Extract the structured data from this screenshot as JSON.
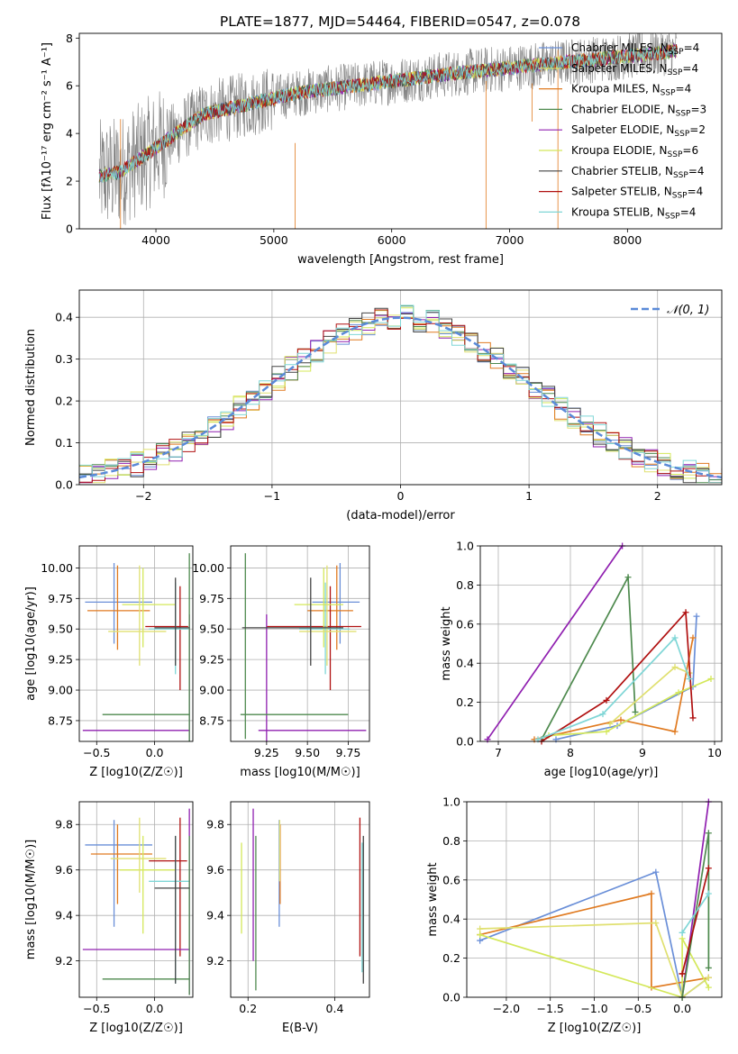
{
  "figure": {
    "title": "PLATE=1877, MJD=54464, FIBERID=0547, z=0.078"
  },
  "series_styles": [
    {
      "name": "Chabrier MILES",
      "nssp": "4",
      "color": "#6a8fd8"
    },
    {
      "name": "Salpeter MILES",
      "nssp": "4",
      "color": "#e0e070"
    },
    {
      "name": "Kroupa MILES",
      "nssp": "4",
      "color": "#e07a20"
    },
    {
      "name": "Chabrier ELODIE",
      "nssp": "3",
      "color": "#4e8a4e"
    },
    {
      "name": "Salpeter ELODIE",
      "nssp": "2",
      "color": "#9020b0"
    },
    {
      "name": "Kroupa ELODIE",
      "nssp": "6",
      "color": "#d4e85a"
    },
    {
      "name": "Chabrier STELIB",
      "nssp": "4",
      "color": "#444444"
    },
    {
      "name": "Salpeter STELIB",
      "nssp": "4",
      "color": "#b01010"
    },
    {
      "name": "Kroupa STELIB",
      "nssp": "4",
      "color": "#7fd6d6"
    }
  ],
  "chart_data": [
    {
      "id": "spectrum",
      "type": "line",
      "xlabel": "wavelength [Angstrom, rest frame]",
      "ylabel": "Flux [fλ10⁻¹⁷ erg cm⁻² s⁻¹ A⁻¹]",
      "xlim": [
        3350,
        8800
      ],
      "ylim": [
        0,
        8.2
      ],
      "xticks": [
        4000,
        5000,
        6000,
        7000,
        8000
      ],
      "yticks": [
        0,
        2,
        4,
        6,
        8
      ],
      "legend_placement": "right",
      "spectrum_color": "#808080"
    },
    {
      "id": "residuals",
      "type": "line",
      "xlabel": "(data-model)/error",
      "ylabel": "Normed distribution",
      "xlim": [
        -2.5,
        2.5
      ],
      "ylim": [
        0,
        0.465
      ],
      "xticks": [
        -2,
        -1,
        0,
        1,
        2
      ],
      "yticks": [
        0.0,
        0.1,
        0.2,
        0.3,
        0.4
      ],
      "grid": true,
      "legend": "𝒩(0, 1)",
      "legend_placement": "top-right",
      "normal_color": "#5a8ad8"
    },
    {
      "id": "age-vs-z",
      "type": "scatter",
      "xlabel": "Z [log10(Z/Z☉)]",
      "ylabel": "age [log10(age/yr)]",
      "xlim": [
        -0.65,
        0.33
      ],
      "ylim": [
        8.58,
        10.18
      ],
      "xticks": [
        -0.5,
        0.0
      ],
      "yticks": [
        8.75,
        9.0,
        9.25,
        9.5,
        9.75,
        10.0
      ],
      "grid": true,
      "points": [
        {
          "s": 0,
          "x": -0.35,
          "xlo": -0.6,
          "xhi": -0.02,
          "y": 9.72,
          "ylo": 9.38,
          "yhi": 10.04
        },
        {
          "s": 2,
          "x": -0.32,
          "xlo": -0.58,
          "xhi": -0.04,
          "y": 9.65,
          "ylo": 9.33,
          "yhi": 10.02
        },
        {
          "s": 7,
          "x": 0.22,
          "xlo": -0.08,
          "xhi": 0.29,
          "y": 9.52,
          "ylo": 9.0,
          "yhi": 9.85
        },
        {
          "s": 8,
          "x": 0.18,
          "xlo": -0.05,
          "xhi": 0.29,
          "y": 9.5,
          "ylo": 9.13,
          "yhi": 9.88
        },
        {
          "s": 4,
          "x": 0.3,
          "xlo": -0.62,
          "xhi": 0.3,
          "y": 8.67,
          "ylo": 8.58,
          "yhi": 9.62
        },
        {
          "s": 3,
          "x": 0.3,
          "xlo": -0.45,
          "xhi": 0.3,
          "y": 8.8,
          "ylo": 8.58,
          "yhi": 10.12
        },
        {
          "s": 5,
          "x": -0.1,
          "xlo": -0.28,
          "xhi": 0.18,
          "y": 9.7,
          "ylo": 9.35,
          "yhi": 10.0
        },
        {
          "s": 1,
          "x": -0.13,
          "xlo": -0.4,
          "xhi": 0.1,
          "y": 9.48,
          "ylo": 9.2,
          "yhi": 10.02
        },
        {
          "s": 6,
          "x": 0.18,
          "xlo": 0.0,
          "xhi": 0.3,
          "y": 9.51,
          "ylo": 9.2,
          "yhi": 9.92
        }
      ]
    },
    {
      "id": "age-vs-mass",
      "type": "scatter",
      "xlabel": "mass [log10(M/M☉)]",
      "ylabel": "",
      "xlim": [
        9.03,
        9.88
      ],
      "ylim": [
        8.58,
        10.18
      ],
      "xticks": [
        9.25,
        9.5,
        9.75
      ],
      "yticks": [
        8.75,
        9.0,
        9.25,
        9.5,
        9.75,
        10.0
      ],
      "grid": true,
      "points": [
        {
          "s": 0,
          "x": 9.7,
          "xlo": 9.53,
          "xhi": 9.82,
          "y": 9.72,
          "ylo": 9.38,
          "yhi": 10.04
        },
        {
          "s": 2,
          "x": 9.68,
          "xlo": 9.5,
          "xhi": 9.78,
          "y": 9.65,
          "ylo": 9.33,
          "yhi": 10.02
        },
        {
          "s": 7,
          "x": 9.64,
          "xlo": 9.25,
          "xhi": 9.83,
          "y": 9.52,
          "ylo": 9.0,
          "yhi": 9.85
        },
        {
          "s": 8,
          "x": 9.61,
          "xlo": 9.45,
          "xhi": 9.76,
          "y": 9.5,
          "ylo": 9.13,
          "yhi": 9.88
        },
        {
          "s": 4,
          "x": 9.25,
          "xlo": 9.2,
          "xhi": 9.86,
          "y": 8.67,
          "ylo": 8.58,
          "yhi": 9.62
        },
        {
          "s": 3,
          "x": 9.12,
          "xlo": 9.09,
          "xhi": 9.75,
          "y": 8.8,
          "ylo": 8.6,
          "yhi": 10.12
        },
        {
          "s": 5,
          "x": 9.6,
          "xlo": 9.42,
          "xhi": 9.72,
          "y": 9.7,
          "ylo": 9.35,
          "yhi": 10.0
        },
        {
          "s": 1,
          "x": 9.62,
          "xlo": 9.45,
          "xhi": 9.8,
          "y": 9.48,
          "ylo": 9.2,
          "yhi": 10.02
        },
        {
          "s": 6,
          "x": 9.52,
          "xlo": 9.1,
          "xhi": 9.72,
          "y": 9.51,
          "ylo": 9.2,
          "yhi": 9.92
        }
      ]
    },
    {
      "id": "weight-vs-age",
      "type": "line",
      "xlabel": "age [log10(age/yr)]",
      "ylabel": "mass weight",
      "xlim": [
        6.75,
        10.1
      ],
      "ylim": [
        0,
        1.0
      ],
      "xticks": [
        7,
        8,
        9,
        10
      ],
      "yticks": [
        0.0,
        0.2,
        0.4,
        0.6,
        0.8,
        1.0
      ],
      "grid": true,
      "series": [
        {
          "s": 0,
          "points": [
            [
              7.8,
              0.01
            ],
            [
              8.65,
              0.08
            ],
            [
              9.7,
              0.28
            ],
            [
              9.75,
              0.64
            ]
          ]
        },
        {
          "s": 2,
          "points": [
            [
              7.5,
              0.01
            ],
            [
              8.7,
              0.11
            ],
            [
              9.45,
              0.05
            ],
            [
              9.7,
              0.53
            ]
          ]
        },
        {
          "s": 4,
          "points": [
            [
              6.85,
              0.01
            ],
            [
              8.72,
              1.0
            ]
          ]
        },
        {
          "s": 3,
          "points": [
            [
              7.6,
              0.01
            ],
            [
              8.8,
              0.84
            ],
            [
              8.9,
              0.15
            ]
          ]
        },
        {
          "s": 5,
          "points": [
            [
              7.7,
              0.03
            ],
            [
              8.5,
              0.05
            ],
            [
              9.5,
              0.25
            ],
            [
              9.95,
              0.32
            ]
          ]
        },
        {
          "s": 1,
          "points": [
            [
              8.55,
              0.09
            ],
            [
              9.45,
              0.38
            ],
            [
              9.65,
              0.35
            ]
          ]
        },
        {
          "s": 7,
          "points": [
            [
              7.6,
              0.0
            ],
            [
              8.5,
              0.21
            ],
            [
              9.6,
              0.66
            ],
            [
              9.7,
              0.12
            ]
          ]
        },
        {
          "s": 8,
          "points": [
            [
              7.55,
              0.01
            ],
            [
              8.45,
              0.14
            ],
            [
              9.45,
              0.53
            ],
            [
              9.65,
              0.32
            ]
          ]
        }
      ]
    },
    {
      "id": "mass-vs-z",
      "type": "scatter",
      "xlabel": "Z [log10(Z/Z☉)]",
      "ylabel": "mass [log10(M/M☉)]",
      "xlim": [
        -0.65,
        0.33
      ],
      "ylim": [
        9.04,
        9.9
      ],
      "xticks": [
        -0.5,
        0.0
      ],
      "yticks": [
        9.2,
        9.4,
        9.6,
        9.8
      ],
      "grid": true,
      "points": [
        {
          "s": 0,
          "x": -0.35,
          "xlo": -0.6,
          "xhi": -0.02,
          "y": 9.71,
          "ylo": 9.35,
          "yhi": 9.82
        },
        {
          "s": 2,
          "x": -0.32,
          "xlo": -0.55,
          "xhi": -0.02,
          "y": 9.67,
          "ylo": 9.45,
          "yhi": 9.8
        },
        {
          "s": 7,
          "x": 0.22,
          "xlo": -0.05,
          "xhi": 0.28,
          "y": 9.64,
          "ylo": 9.22,
          "yhi": 9.83
        },
        {
          "s": 8,
          "x": 0.18,
          "xlo": -0.05,
          "xhi": 0.3,
          "y": 9.55,
          "ylo": 9.1,
          "yhi": 9.75
        },
        {
          "s": 4,
          "x": 0.3,
          "xlo": -0.62,
          "xhi": 0.3,
          "y": 9.25,
          "ylo": 9.05,
          "yhi": 9.87
        },
        {
          "s": 3,
          "x": 0.3,
          "xlo": -0.45,
          "xhi": 0.3,
          "y": 9.12,
          "ylo": 9.05,
          "yhi": 9.75
        },
        {
          "s": 5,
          "x": -0.1,
          "xlo": -0.3,
          "xhi": 0.18,
          "y": 9.6,
          "ylo": 9.32,
          "yhi": 9.75
        },
        {
          "s": 1,
          "x": -0.13,
          "xlo": -0.38,
          "xhi": 0.1,
          "y": 9.65,
          "ylo": 9.5,
          "yhi": 9.83
        },
        {
          "s": 6,
          "x": 0.18,
          "xlo": 0.0,
          "xhi": 0.3,
          "y": 9.52,
          "ylo": 9.1,
          "yhi": 9.75
        }
      ]
    },
    {
      "id": "mass-vs-ebv",
      "type": "scatter",
      "xlabel": "E(B-V)",
      "ylabel": "",
      "xlim": [
        0.16,
        0.48
      ],
      "ylim": [
        9.04,
        9.9
      ],
      "xticks": [
        0.2,
        0.4
      ],
      "yticks": [
        9.2,
        9.4,
        9.6,
        9.8
      ],
      "grid": true,
      "points": [
        {
          "s": 0,
          "x": 0.272,
          "ylo": 9.35,
          "yhi": 9.82
        },
        {
          "s": 2,
          "x": 0.274,
          "ylo": 9.45,
          "yhi": 9.8
        },
        {
          "s": 1,
          "x": 0.273,
          "ylo": 9.55,
          "yhi": 9.82
        },
        {
          "s": 5,
          "x": 0.185,
          "ylo": 9.32,
          "yhi": 9.72
        },
        {
          "s": 4,
          "x": 0.212,
          "ylo": 9.2,
          "yhi": 9.87
        },
        {
          "s": 3,
          "x": 0.218,
          "ylo": 9.07,
          "yhi": 9.75
        },
        {
          "s": 7,
          "x": 0.458,
          "ylo": 9.22,
          "yhi": 9.83
        },
        {
          "s": 8,
          "x": 0.463,
          "ylo": 9.15,
          "yhi": 9.72
        },
        {
          "s": 6,
          "x": 0.466,
          "ylo": 9.1,
          "yhi": 9.75
        }
      ]
    },
    {
      "id": "weight-vs-z",
      "type": "line",
      "xlabel": "Z [log10(Z/Z☉)]",
      "ylabel": "mass weight",
      "xlim": [
        -2.45,
        0.45
      ],
      "ylim": [
        0,
        1.0
      ],
      "xticks": [
        -2.0,
        -1.5,
        -1.0,
        -0.5,
        0.0
      ],
      "yticks": [
        0.0,
        0.2,
        0.4,
        0.6,
        0.8,
        1.0
      ],
      "grid": true,
      "series": [
        {
          "s": 0,
          "points": [
            [
              -2.3,
              0.29
            ],
            [
              -0.3,
              0.64
            ],
            [
              0.0,
              0.0
            ],
            [
              0.3,
              0.1
            ]
          ]
        },
        {
          "s": 2,
          "points": [
            [
              -2.3,
              0.32
            ],
            [
              -0.35,
              0.53
            ],
            [
              -0.35,
              0.05
            ],
            [
              0.3,
              0.1
            ]
          ]
        },
        {
          "s": 1,
          "points": [
            [
              -2.3,
              0.35
            ],
            [
              -0.3,
              0.38
            ],
            [
              0.0,
              0.0
            ],
            [
              0.3,
              0.1
            ]
          ]
        },
        {
          "s": 5,
          "points": [
            [
              -2.3,
              0.32
            ],
            [
              0.0,
              0.0
            ],
            [
              0.0,
              0.3
            ],
            [
              0.3,
              0.05
            ]
          ]
        },
        {
          "s": 4,
          "points": [
            [
              0.0,
              0.0
            ],
            [
              0.3,
              1.0
            ]
          ]
        },
        {
          "s": 3,
          "points": [
            [
              0.0,
              0.0
            ],
            [
              0.3,
              0.84
            ],
            [
              0.3,
              0.15
            ]
          ]
        },
        {
          "s": 7,
          "points": [
            [
              0.0,
              0.12
            ],
            [
              0.3,
              0.66
            ],
            [
              0.0,
              0.12
            ]
          ]
        },
        {
          "s": 8,
          "points": [
            [
              0.0,
              0.33
            ],
            [
              0.3,
              0.53
            ],
            [
              0.0,
              0.33
            ]
          ]
        }
      ]
    }
  ]
}
